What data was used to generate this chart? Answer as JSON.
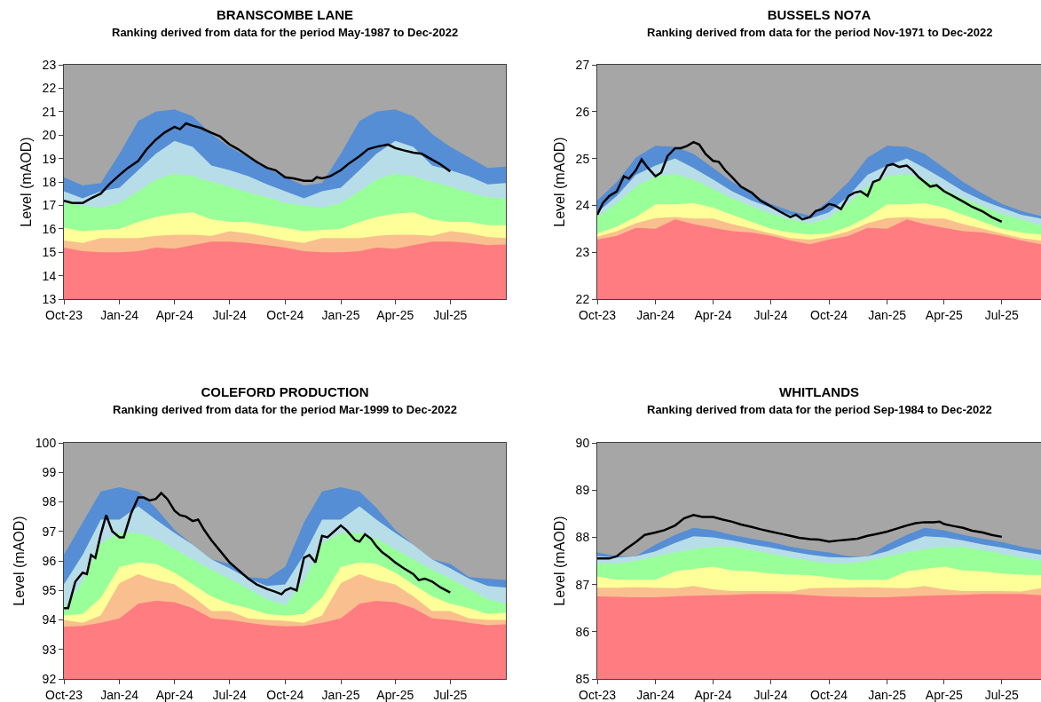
{
  "chart_data": [
    {
      "type": "area",
      "title": "BRANSCOMBE LANE",
      "subtitle": "Ranking derived from data for the period May-1987 to Dec-2022",
      "ylabel": "Level (mAOD)",
      "x": [
        "2023-10",
        "2023-11",
        "2023-12",
        "2024-01",
        "2024-02",
        "2024-03",
        "2024-04",
        "2024-05",
        "2024-06",
        "2024-07",
        "2024-08",
        "2024-09",
        "2024-10",
        "2024-11",
        "2024-12",
        "2025-01",
        "2025-02",
        "2025-03",
        "2025-04",
        "2025-05",
        "2025-06",
        "2025-07",
        "2025-08",
        "2025-09",
        "2025-10"
      ],
      "xlim": [
        "2023-10-01",
        "2025-10-01"
      ],
      "xticks": [
        {
          "value": "2023-10-01",
          "label": "Oct-23"
        },
        {
          "value": "2024-01-01",
          "label": "Jan-24"
        },
        {
          "value": "2024-04-01",
          "label": "Apr-24"
        },
        {
          "value": "2024-07-01",
          "label": "Jul-24"
        },
        {
          "value": "2024-10-01",
          "label": "Oct-24"
        },
        {
          "value": "2025-01-01",
          "label": "Jan-25"
        },
        {
          "value": "2025-04-01",
          "label": "Apr-25"
        },
        {
          "value": "2025-07-01",
          "label": "Jul-25"
        }
      ],
      "ylim": [
        13,
        23
      ],
      "yticks": [
        13,
        14,
        15,
        16,
        17,
        18,
        19,
        20,
        21,
        22,
        23
      ],
      "series": [
        {
          "color": "#a6a6a6",
          "values": [
            23,
            23,
            23,
            23,
            23,
            23,
            23,
            23,
            23,
            23,
            23,
            23,
            23,
            23,
            23,
            23,
            23,
            23,
            23,
            23,
            23,
            23,
            23,
            23,
            23
          ]
        },
        {
          "color": "#558ed5",
          "values": [
            18.2,
            17.85,
            17.95,
            19.2,
            20.6,
            21.0,
            21.1,
            20.8,
            20.05,
            19.5,
            19.05,
            18.6,
            18.2,
            17.85,
            17.95,
            19.2,
            20.6,
            21.0,
            21.1,
            20.8,
            20.05,
            19.5,
            19.05,
            18.6,
            18.65
          ]
        },
        {
          "color": "#b7dde8",
          "values": [
            17.6,
            17.3,
            17.6,
            17.75,
            18.5,
            19.2,
            19.75,
            19.5,
            18.7,
            18.5,
            18.25,
            17.9,
            17.6,
            17.3,
            17.6,
            17.75,
            18.5,
            19.2,
            19.75,
            19.5,
            18.7,
            18.5,
            18.25,
            17.9,
            17.95
          ]
        },
        {
          "color": "#99ff99",
          "values": [
            17.1,
            17.0,
            16.9,
            17.1,
            17.6,
            18.1,
            18.35,
            18.25,
            18.0,
            17.8,
            17.55,
            17.35,
            17.1,
            17.0,
            16.9,
            17.1,
            17.6,
            18.1,
            18.35,
            18.25,
            18.0,
            17.8,
            17.55,
            17.35,
            17.3
          ]
        },
        {
          "color": "#ffff99",
          "values": [
            16.05,
            15.9,
            15.95,
            16.0,
            16.3,
            16.5,
            16.65,
            16.7,
            16.4,
            16.3,
            16.3,
            16.15,
            16.05,
            15.9,
            15.95,
            16.0,
            16.3,
            16.5,
            16.65,
            16.7,
            16.4,
            16.3,
            16.3,
            16.15,
            16.15
          ]
        },
        {
          "color": "#fabf8f",
          "values": [
            15.5,
            15.4,
            15.6,
            15.6,
            15.6,
            15.7,
            15.75,
            15.75,
            15.7,
            15.9,
            15.8,
            15.65,
            15.5,
            15.4,
            15.6,
            15.6,
            15.6,
            15.7,
            15.75,
            15.75,
            15.7,
            15.9,
            15.8,
            15.65,
            15.6
          ]
        },
        {
          "color": "#ff7c80",
          "values": [
            15.2,
            15.05,
            15.0,
            15.0,
            15.05,
            15.2,
            15.15,
            15.3,
            15.45,
            15.45,
            15.4,
            15.3,
            15.2,
            15.05,
            15.0,
            15.0,
            15.05,
            15.2,
            15.15,
            15.3,
            15.45,
            15.45,
            15.4,
            15.3,
            15.33
          ]
        },
        {
          "type": "line",
          "color": "#000000",
          "x": [
            "2023-10-01",
            "2023-10-15",
            "2023-11-01",
            "2023-11-15",
            "2023-12-01",
            "2023-12-15",
            "2024-01-01",
            "2024-01-15",
            "2024-02-01",
            "2024-02-15",
            "2024-03-01",
            "2024-03-15",
            "2024-04-01",
            "2024-04-10",
            "2024-04-20",
            "2024-05-01",
            "2024-05-15",
            "2024-06-01",
            "2024-06-15",
            "2024-07-01",
            "2024-07-15",
            "2024-08-01",
            "2024-08-15",
            "2024-09-01",
            "2024-09-15",
            "2024-10-01",
            "2024-10-15",
            "2024-11-01",
            "2024-11-15",
            "2024-11-22",
            "2024-12-01",
            "2024-12-15",
            "2025-01-01",
            "2025-01-15",
            "2025-02-01",
            "2025-02-15",
            "2025-03-01",
            "2025-03-20",
            "2025-04-01",
            "2025-04-15",
            "2025-05-01",
            "2025-05-15",
            "2025-06-01",
            "2025-06-15",
            "2025-07-01"
          ],
          "values": [
            17.2,
            17.1,
            17.1,
            17.3,
            17.5,
            17.9,
            18.3,
            18.6,
            18.9,
            19.4,
            19.8,
            20.1,
            20.35,
            20.25,
            20.5,
            20.4,
            20.3,
            20.1,
            19.95,
            19.6,
            19.4,
            19.1,
            18.85,
            18.6,
            18.5,
            18.2,
            18.15,
            18.05,
            18.05,
            18.2,
            18.15,
            18.25,
            18.5,
            18.8,
            19.1,
            19.4,
            19.5,
            19.6,
            19.45,
            19.35,
            19.25,
            19.2,
            18.95,
            18.75,
            18.45
          ]
        }
      ]
    },
    {
      "type": "area",
      "title": "BUSSELS NO7A",
      "subtitle": "Ranking derived from data for the period Nov-1971 to Dec-2022",
      "ylabel": "Level (mAOD)",
      "x": [
        "2023-10",
        "2023-11",
        "2023-12",
        "2024-01",
        "2024-02",
        "2024-03",
        "2024-04",
        "2024-05",
        "2024-06",
        "2024-07",
        "2024-08",
        "2024-09",
        "2024-10",
        "2024-11",
        "2024-12",
        "2025-01",
        "2025-02",
        "2025-03",
        "2025-04",
        "2025-05",
        "2025-06",
        "2025-07",
        "2025-08",
        "2025-09"
      ],
      "xlim": [
        "2023-10-01",
        "2025-09-01"
      ],
      "xticks": [
        {
          "value": "2023-10-01",
          "label": "Oct-23"
        },
        {
          "value": "2024-01-01",
          "label": "Jan-24"
        },
        {
          "value": "2024-04-01",
          "label": "Apr-24"
        },
        {
          "value": "2024-07-01",
          "label": "Jul-24"
        },
        {
          "value": "2024-10-01",
          "label": "Oct-24"
        },
        {
          "value": "2025-01-01",
          "label": "Jan-25"
        },
        {
          "value": "2025-04-01",
          "label": "Apr-25"
        },
        {
          "value": "2025-07-01",
          "label": "Jul-25"
        }
      ],
      "ylim": [
        22,
        27
      ],
      "yticks": [
        22,
        23,
        24,
        25,
        26,
        27
      ],
      "series": [
        {
          "color": "#a6a6a6",
          "values": [
            27,
            27,
            27,
            27,
            27,
            27,
            27,
            27,
            27,
            27,
            27,
            27,
            27,
            27,
            27,
            27,
            27,
            27,
            27,
            27,
            27,
            27,
            27,
            27
          ]
        },
        {
          "color": "#558ed5",
          "values": [
            24.1,
            24.5,
            25.02,
            25.27,
            25.25,
            25.1,
            24.8,
            24.5,
            24.25,
            24.03,
            23.88,
            23.78,
            24.1,
            24.5,
            25.02,
            25.27,
            25.25,
            25.1,
            24.8,
            24.5,
            24.25,
            24.03,
            23.88,
            23.77
          ]
        },
        {
          "color": "#b7dde8",
          "values": [
            23.85,
            24.2,
            24.65,
            24.85,
            25.0,
            24.8,
            24.55,
            24.3,
            24.1,
            23.95,
            23.8,
            23.72,
            23.85,
            24.2,
            24.65,
            24.85,
            25.0,
            24.8,
            24.55,
            24.3,
            24.1,
            23.95,
            23.8,
            23.72
          ]
        },
        {
          "color": "#99ff99",
          "values": [
            23.75,
            24.05,
            24.4,
            24.62,
            24.67,
            24.55,
            24.35,
            24.15,
            23.98,
            23.82,
            23.7,
            23.62,
            23.73,
            24.05,
            24.4,
            24.62,
            24.67,
            24.55,
            24.35,
            24.15,
            23.98,
            23.82,
            23.7,
            23.57
          ]
        },
        {
          "color": "#ffff99",
          "values": [
            23.4,
            23.55,
            23.75,
            24.02,
            24.02,
            24.05,
            23.95,
            23.8,
            23.65,
            23.5,
            23.42,
            23.38,
            23.4,
            23.55,
            23.75,
            24.02,
            24.02,
            24.05,
            23.95,
            23.8,
            23.65,
            23.5,
            23.42,
            23.38
          ]
        },
        {
          "color": "#fabf8f",
          "values": [
            23.33,
            23.45,
            23.62,
            23.73,
            23.75,
            23.72,
            23.72,
            23.6,
            23.5,
            23.4,
            23.3,
            23.27,
            23.33,
            23.45,
            23.62,
            23.73,
            23.75,
            23.72,
            23.72,
            23.6,
            23.5,
            23.4,
            23.3,
            23.25
          ]
        },
        {
          "color": "#ff7c80",
          "values": [
            23.27,
            23.35,
            23.52,
            23.5,
            23.7,
            23.6,
            23.52,
            23.45,
            23.42,
            23.35,
            23.25,
            23.17,
            23.27,
            23.35,
            23.52,
            23.5,
            23.7,
            23.6,
            23.52,
            23.45,
            23.42,
            23.35,
            23.25,
            23.17
          ]
        },
        {
          "type": "line",
          "color": "#000000",
          "x": [
            "2023-10-01",
            "2023-10-10",
            "2023-10-20",
            "2023-11-01",
            "2023-11-12",
            "2023-11-20",
            "2023-12-01",
            "2023-12-10",
            "2023-12-20",
            "2024-01-01",
            "2024-01-10",
            "2024-01-20",
            "2024-02-01",
            "2024-02-10",
            "2024-02-20",
            "2024-03-01",
            "2024-03-10",
            "2024-03-20",
            "2024-04-01",
            "2024-04-10",
            "2024-04-20",
            "2024-05-01",
            "2024-05-15",
            "2024-06-01",
            "2024-06-15",
            "2024-07-01",
            "2024-07-15",
            "2024-08-01",
            "2024-08-10",
            "2024-08-20",
            "2024-09-01",
            "2024-09-10",
            "2024-09-20",
            "2024-10-01",
            "2024-10-10",
            "2024-10-20",
            "2024-11-01",
            "2024-11-10",
            "2024-11-20",
            "2024-12-01",
            "2024-12-10",
            "2024-12-20",
            "2025-01-01",
            "2025-01-10",
            "2025-01-20",
            "2025-02-01",
            "2025-02-10",
            "2025-02-20",
            "2025-03-01",
            "2025-03-10",
            "2025-03-20",
            "2025-04-01",
            "2025-04-15",
            "2025-05-01",
            "2025-05-15",
            "2025-06-01",
            "2025-06-15",
            "2025-07-01"
          ],
          "values": [
            23.8,
            24.05,
            24.2,
            24.3,
            24.62,
            24.57,
            24.75,
            24.98,
            24.8,
            24.62,
            24.7,
            25.05,
            25.22,
            25.22,
            25.27,
            25.35,
            25.3,
            25.1,
            24.95,
            24.93,
            24.75,
            24.6,
            24.4,
            24.27,
            24.1,
            23.98,
            23.87,
            23.75,
            23.8,
            23.7,
            23.75,
            23.88,
            23.92,
            24.03,
            24.0,
            23.92,
            24.2,
            24.27,
            24.3,
            24.2,
            24.5,
            24.55,
            24.85,
            24.88,
            24.82,
            24.85,
            24.75,
            24.6,
            24.5,
            24.4,
            24.43,
            24.3,
            24.2,
            24.08,
            23.97,
            23.87,
            23.75,
            23.65
          ]
        }
      ]
    },
    {
      "type": "area",
      "title": "COLEFORD PRODUCTION",
      "subtitle": "Ranking derived from data for the period Mar-1999 to Dec-2022",
      "ylabel": "Level (mAOD)",
      "x": [
        "2023-10",
        "2023-11",
        "2023-12",
        "2024-01",
        "2024-02",
        "2024-03",
        "2024-04",
        "2024-05",
        "2024-06",
        "2024-07",
        "2024-08",
        "2024-09",
        "2024-10",
        "2024-11",
        "2024-12",
        "2025-01",
        "2025-02",
        "2025-03",
        "2025-04",
        "2025-05",
        "2025-06",
        "2025-07",
        "2025-08",
        "2025-09",
        "2025-10"
      ],
      "xlim": [
        "2023-10-01",
        "2025-10-01"
      ],
      "xticks": [
        {
          "value": "2023-10-01",
          "label": "Oct-23"
        },
        {
          "value": "2024-01-01",
          "label": "Jan-24"
        },
        {
          "value": "2024-04-01",
          "label": "Apr-24"
        },
        {
          "value": "2024-07-01",
          "label": "Jul-24"
        },
        {
          "value": "2024-10-01",
          "label": "Oct-24"
        },
        {
          "value": "2025-01-01",
          "label": "Jan-25"
        },
        {
          "value": "2025-04-01",
          "label": "Apr-25"
        },
        {
          "value": "2025-07-01",
          "label": "Jul-25"
        }
      ],
      "ylim": [
        92,
        100
      ],
      "yticks": [
        92,
        93,
        94,
        95,
        96,
        97,
        98,
        99,
        100
      ],
      "series": [
        {
          "color": "#a6a6a6",
          "values": [
            100,
            100,
            100,
            100,
            100,
            100,
            100,
            100,
            100,
            100,
            100,
            100,
            100,
            100,
            100,
            100,
            100,
            100,
            100,
            100,
            100,
            100,
            100,
            100,
            100
          ]
        },
        {
          "color": "#558ed5",
          "values": [
            96.2,
            97.3,
            98.35,
            98.5,
            98.35,
            97.8,
            97.05,
            96.55,
            96.05,
            95.9,
            95.45,
            95.4,
            95.8,
            97.3,
            98.35,
            98.5,
            98.35,
            97.8,
            97.05,
            96.55,
            96.05,
            95.9,
            95.45,
            95.4,
            95.35
          ]
        },
        {
          "color": "#b7dde8",
          "values": [
            95.2,
            96.2,
            97.4,
            97.4,
            97.85,
            97.4,
            96.95,
            96.55,
            96.05,
            95.75,
            95.4,
            95.15,
            95.2,
            96.2,
            97.4,
            97.4,
            97.85,
            97.4,
            96.95,
            96.55,
            96.05,
            95.75,
            95.4,
            95.15,
            95.1
          ]
        },
        {
          "color": "#99ff99",
          "values": [
            94.4,
            95.3,
            96.6,
            96.95,
            96.95,
            96.75,
            96.4,
            96.05,
            95.7,
            95.4,
            95.05,
            94.7,
            94.5,
            95.3,
            96.6,
            96.95,
            96.95,
            96.75,
            96.4,
            96.05,
            95.7,
            95.4,
            95.05,
            94.7,
            94.55
          ]
        },
        {
          "color": "#ffff99",
          "values": [
            94.15,
            94.2,
            94.75,
            95.8,
            95.95,
            95.9,
            95.6,
            95.2,
            94.8,
            94.55,
            94.4,
            94.2,
            94.15,
            94.2,
            94.75,
            95.8,
            95.95,
            95.9,
            95.6,
            95.2,
            94.8,
            94.55,
            94.4,
            94.2,
            94.25
          ]
        },
        {
          "color": "#fabf8f",
          "values": [
            94.0,
            93.9,
            94.15,
            95.25,
            95.55,
            95.35,
            95.2,
            94.8,
            94.3,
            94.3,
            94.05,
            94.0,
            93.97,
            93.9,
            94.15,
            95.25,
            95.55,
            95.35,
            95.2,
            94.8,
            94.3,
            94.3,
            94.05,
            94.0,
            94.0
          ]
        },
        {
          "color": "#ff7c80",
          "values": [
            93.77,
            93.8,
            93.9,
            94.05,
            94.55,
            94.65,
            94.6,
            94.4,
            94.05,
            94.0,
            93.9,
            93.82,
            93.78,
            93.8,
            93.9,
            94.05,
            94.55,
            94.65,
            94.6,
            94.4,
            94.05,
            94.0,
            93.9,
            93.82,
            93.85
          ]
        },
        {
          "type": "line",
          "color": "#000000",
          "x": [
            "2023-10-01",
            "2023-10-08",
            "2023-10-20",
            "2023-11-01",
            "2023-11-08",
            "2023-11-15",
            "2023-11-22",
            "2023-12-01",
            "2023-12-10",
            "2023-12-20",
            "2024-01-01",
            "2024-01-08",
            "2024-01-20",
            "2024-02-01",
            "2024-02-10",
            "2024-02-20",
            "2024-03-01",
            "2024-03-10",
            "2024-03-20",
            "2024-04-01",
            "2024-04-10",
            "2024-04-20",
            "2024-05-01",
            "2024-05-10",
            "2024-05-20",
            "2024-06-01",
            "2024-06-15",
            "2024-07-01",
            "2024-07-15",
            "2024-08-01",
            "2024-08-15",
            "2024-09-01",
            "2024-09-15",
            "2024-09-25",
            "2024-10-01",
            "2024-10-10",
            "2024-10-20",
            "2024-11-01",
            "2024-11-10",
            "2024-11-20",
            "2024-12-01",
            "2024-12-10",
            "2025-01-01",
            "2025-01-10",
            "2025-01-25",
            "2025-02-01",
            "2025-02-10",
            "2025-02-20",
            "2025-03-01",
            "2025-03-10",
            "2025-03-20",
            "2025-04-01",
            "2025-04-15",
            "2025-05-01",
            "2025-05-10",
            "2025-05-20",
            "2025-06-01",
            "2025-06-15",
            "2025-07-01"
          ],
          "values": [
            94.4,
            94.4,
            95.3,
            95.6,
            95.55,
            96.2,
            96.1,
            96.9,
            97.55,
            97.0,
            96.8,
            96.8,
            97.6,
            98.15,
            98.15,
            98.05,
            98.1,
            98.3,
            98.1,
            97.7,
            97.55,
            97.5,
            97.35,
            97.4,
            97.05,
            96.7,
            96.35,
            95.95,
            95.7,
            95.4,
            95.2,
            95.05,
            94.95,
            94.87,
            95.0,
            95.08,
            95.0,
            96.1,
            96.2,
            95.95,
            96.85,
            96.8,
            97.2,
            97.05,
            96.7,
            96.65,
            96.9,
            96.75,
            96.5,
            96.3,
            96.15,
            95.95,
            95.75,
            95.55,
            95.35,
            95.4,
            95.3,
            95.1,
            94.93
          ]
        }
      ]
    },
    {
      "type": "area",
      "title": "WHITLANDS",
      "subtitle": "Ranking derived from data for the period Sep-1984 to Dec-2022",
      "ylabel": "Level (mAOD)",
      "x": [
        "2023-10",
        "2023-11",
        "2023-12",
        "2024-01",
        "2024-02",
        "2024-03",
        "2024-04",
        "2024-05",
        "2024-06",
        "2024-07",
        "2024-08",
        "2024-09",
        "2024-10",
        "2024-11",
        "2024-12",
        "2025-01",
        "2025-02",
        "2025-03",
        "2025-04",
        "2025-05",
        "2025-06",
        "2025-07",
        "2025-08",
        "2025-09"
      ],
      "xlim": [
        "2023-10-01",
        "2025-09-01"
      ],
      "xticks": [
        {
          "value": "2023-10-01",
          "label": "Oct-23"
        },
        {
          "value": "2024-01-01",
          "label": "Jan-24"
        },
        {
          "value": "2024-04-01",
          "label": "Apr-24"
        },
        {
          "value": "2024-07-01",
          "label": "Jul-24"
        },
        {
          "value": "2024-10-01",
          "label": "Oct-24"
        },
        {
          "value": "2025-01-01",
          "label": "Jan-25"
        },
        {
          "value": "2025-04-01",
          "label": "Apr-25"
        },
        {
          "value": "2025-07-01",
          "label": "Jul-25"
        }
      ],
      "ylim": [
        85,
        90
      ],
      "yticks": [
        85,
        86,
        87,
        88,
        89,
        90
      ],
      "series": [
        {
          "color": "#a6a6a6",
          "values": [
            90,
            90,
            90,
            90,
            90,
            90,
            90,
            90,
            90,
            90,
            90,
            90,
            90,
            90,
            90,
            90,
            90,
            90,
            90,
            90,
            90,
            90,
            90,
            90
          ]
        },
        {
          "color": "#558ed5",
          "values": [
            87.68,
            87.6,
            87.6,
            87.85,
            88.05,
            88.2,
            88.15,
            88.05,
            87.97,
            87.9,
            87.8,
            87.73,
            87.68,
            87.6,
            87.6,
            87.85,
            88.05,
            88.2,
            88.15,
            88.05,
            87.97,
            87.9,
            87.8,
            87.73
          ]
        },
        {
          "color": "#b7dde8",
          "values": [
            87.6,
            87.57,
            87.6,
            87.7,
            87.88,
            88.02,
            88.0,
            87.93,
            87.85,
            87.78,
            87.7,
            87.63,
            87.58,
            87.57,
            87.6,
            87.7,
            87.88,
            88.02,
            88.0,
            87.93,
            87.85,
            87.78,
            87.7,
            87.63
          ]
        },
        {
          "color": "#99ff99",
          "values": [
            87.45,
            87.45,
            87.5,
            87.6,
            87.68,
            87.75,
            87.8,
            87.8,
            87.73,
            87.65,
            87.57,
            87.5,
            87.45,
            87.45,
            87.5,
            87.6,
            87.68,
            87.75,
            87.8,
            87.8,
            87.73,
            87.65,
            87.57,
            87.5
          ]
        },
        {
          "color": "#ffff99",
          "values": [
            87.17,
            87.1,
            87.1,
            87.1,
            87.28,
            87.33,
            87.38,
            87.3,
            87.28,
            87.23,
            87.21,
            87.2,
            87.15,
            87.1,
            87.1,
            87.1,
            87.28,
            87.33,
            87.38,
            87.3,
            87.28,
            87.23,
            87.21,
            87.2
          ]
        },
        {
          "color": "#fabf8f",
          "values": [
            86.93,
            86.93,
            86.94,
            86.93,
            86.92,
            86.97,
            86.9,
            86.86,
            86.86,
            86.86,
            86.85,
            86.92,
            86.93,
            86.93,
            86.94,
            86.93,
            86.92,
            86.97,
            86.9,
            86.86,
            86.86,
            86.86,
            86.85,
            86.92
          ]
        },
        {
          "color": "#ff7c80",
          "values": [
            86.75,
            86.74,
            86.73,
            86.73,
            86.75,
            86.76,
            86.77,
            86.78,
            86.8,
            86.8,
            86.8,
            86.77,
            86.75,
            86.74,
            86.73,
            86.73,
            86.75,
            86.76,
            86.77,
            86.78,
            86.8,
            86.8,
            86.8,
            86.77
          ]
        },
        {
          "type": "line",
          "color": "#000000",
          "x": [
            "2023-10-01",
            "2023-10-20",
            "2023-11-01",
            "2023-11-15",
            "2023-12-01",
            "2023-12-15",
            "2024-01-01",
            "2024-01-15",
            "2024-02-01",
            "2024-02-15",
            "2024-03-01",
            "2024-03-15",
            "2024-04-01",
            "2024-04-15",
            "2024-05-01",
            "2024-05-15",
            "2024-06-01",
            "2024-06-15",
            "2024-07-01",
            "2024-07-15",
            "2024-08-01",
            "2024-08-15",
            "2024-09-01",
            "2024-09-15",
            "2024-10-01",
            "2024-10-15",
            "2024-11-01",
            "2024-11-15",
            "2024-12-01",
            "2024-12-15",
            "2025-01-01",
            "2025-01-15",
            "2025-02-01",
            "2025-02-15",
            "2025-03-01",
            "2025-03-15",
            "2025-03-25",
            "2025-04-01",
            "2025-04-15",
            "2025-05-01",
            "2025-05-15",
            "2025-06-01",
            "2025-06-15",
            "2025-07-01"
          ],
          "values": [
            87.55,
            87.55,
            87.6,
            87.75,
            87.9,
            88.05,
            88.1,
            88.15,
            88.25,
            88.4,
            88.47,
            88.43,
            88.43,
            88.38,
            88.33,
            88.27,
            88.22,
            88.17,
            88.12,
            88.08,
            88.03,
            87.99,
            87.96,
            87.95,
            87.91,
            87.93,
            87.95,
            87.97,
            88.03,
            88.07,
            88.12,
            88.18,
            88.25,
            88.3,
            88.32,
            88.32,
            88.33,
            88.28,
            88.24,
            88.2,
            88.14,
            88.1,
            88.05,
            88.01
          ]
        }
      ]
    }
  ]
}
